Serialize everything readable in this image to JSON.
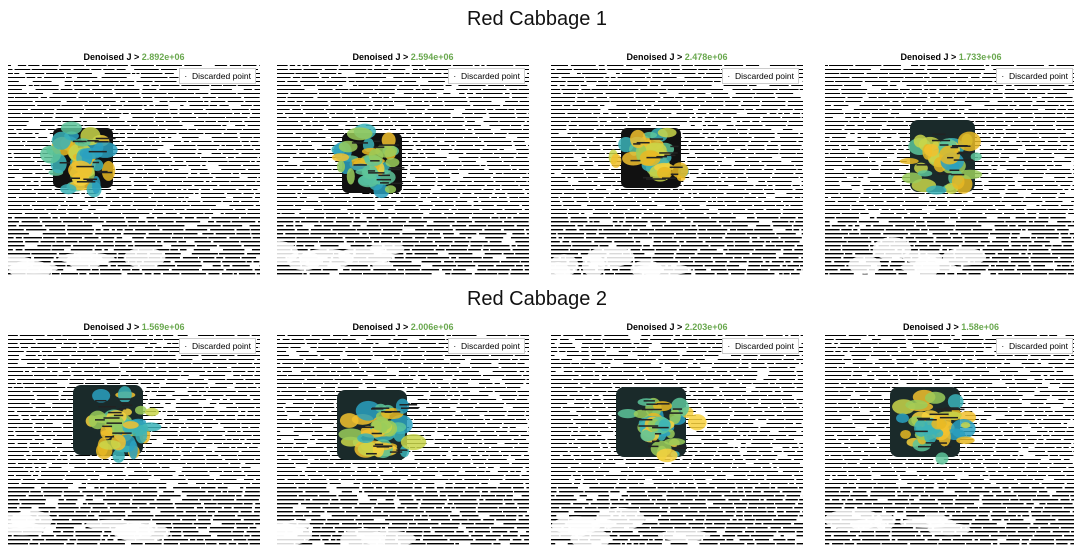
{
  "sections": [
    {
      "title": "Red Cabbage 1",
      "panels": [
        {
          "title": "Denoised J >",
          "threshold": "2.892e+06",
          "legend": "Discarded point"
        },
        {
          "title": "Denoised J >",
          "threshold": "2.594e+06",
          "legend": "Discarded point"
        },
        {
          "title": "Denoised J >",
          "threshold": "2.478e+06",
          "legend": "Discarded point"
        },
        {
          "title": "Denoised J >",
          "threshold": "1.733e+06",
          "legend": "Discarded point"
        }
      ]
    },
    {
      "title": "Red Cabbage 2",
      "panels": [
        {
          "title": "Denoised J >",
          "threshold": "1.569e+06",
          "legend": "Discarded point"
        },
        {
          "title": "Denoised J >",
          "threshold": "2.006e+06",
          "legend": "Discarded point"
        },
        {
          "title": "Denoised J >",
          "threshold": "2.203e+06",
          "legend": "Discarded point"
        },
        {
          "title": "Denoised J >",
          "threshold": "1.58e+06",
          "legend": "Discarded point"
        }
      ]
    }
  ]
}
